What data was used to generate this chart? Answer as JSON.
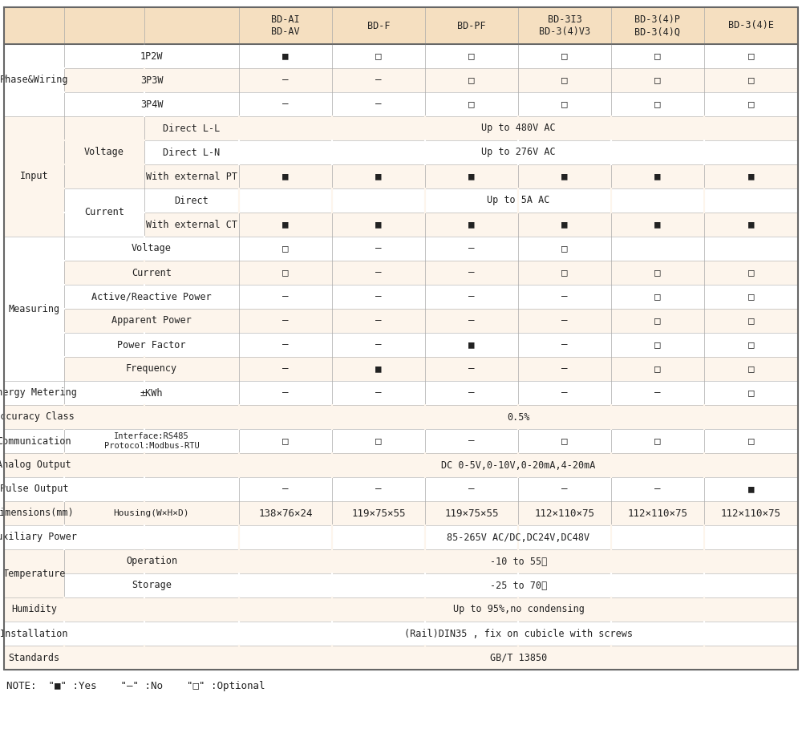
{
  "bg_light": "#fdf5ec",
  "bg_header": "#f5dfc0",
  "bg_white": "#ffffff",
  "border_color": "#aaaaaa",
  "border_dark": "#666666",
  "text_color": "#222222",
  "col_headers": [
    "BD-AI\nBD-AV",
    "BD-F",
    "BD-PF",
    "BD-3I3\nBD-3(4)V3",
    "BD-3(4)P\nBD-3(4)Q",
    "BD-3(4)E"
  ],
  "note": "NOTE:  \"■\" :Yes    \"—\" :No    \"□\" :Optional",
  "rows": [
    {
      "col0": "Phase&Wiring",
      "col0_span": 3,
      "col1": "1P2W",
      "col1_is_label": true,
      "cells": [
        "■",
        "□",
        "□",
        "□",
        "□",
        "□"
      ],
      "bg": "white",
      "row_idx": 0
    },
    {
      "col0": "",
      "col0_span": 0,
      "col1": "3P3W",
      "col1_is_label": true,
      "cells": [
        "—",
        "—",
        "□",
        "□",
        "□",
        "□"
      ],
      "bg": "light",
      "row_idx": 1
    },
    {
      "col0": "",
      "col0_span": 0,
      "col1": "3P4W",
      "col1_is_label": true,
      "cells": [
        "—",
        "—",
        "□",
        "□",
        "□",
        "□"
      ],
      "bg": "white",
      "row_idx": 2
    },
    {
      "col0": "Input",
      "col0_span": 5,
      "col1": "Voltage",
      "col1_span": 3,
      "col2": "Direct L-L",
      "cells_span": "Up to 480V AC",
      "bg": "light",
      "row_idx": 3
    },
    {
      "col0": "",
      "col0_span": 0,
      "col1": "",
      "col1_span": 0,
      "col2": "Direct L-N",
      "cells_span": "Up to 276V AC",
      "bg": "white",
      "row_idx": 4
    },
    {
      "col0": "",
      "col0_span": 0,
      "col1": "",
      "col1_span": 0,
      "col2": "With external PT",
      "cells": [
        "■",
        "■",
        "■",
        "■",
        "■",
        "■"
      ],
      "bg": "light",
      "row_idx": 5
    },
    {
      "col0": "",
      "col0_span": 0,
      "col1": "Current",
      "col1_span": 2,
      "col2": "Direct",
      "cells_span": "Up to 5A AC",
      "bg": "white",
      "row_idx": 6
    },
    {
      "col0": "",
      "col0_span": 0,
      "col1": "",
      "col1_span": 0,
      "col2": "With external CT",
      "cells": [
        "■",
        "■",
        "■",
        "■",
        "■",
        "■"
      ],
      "bg": "light",
      "row_idx": 7
    },
    {
      "col0": "Measuring",
      "col0_span": 6,
      "col1": "Voltage",
      "col1_is_label": true,
      "cells": [
        "□",
        "—",
        "—",
        "□",
        "",
        ""
      ],
      "bg": "white",
      "row_idx": 8
    },
    {
      "col0": "",
      "col0_span": 0,
      "col1": "Current",
      "col1_is_label": true,
      "cells": [
        "□",
        "—",
        "—",
        "□",
        "□",
        "□"
      ],
      "bg": "light",
      "row_idx": 9
    },
    {
      "col0": "",
      "col0_span": 0,
      "col1": "Active/Reactive Power",
      "col1_is_label": true,
      "cells": [
        "—",
        "—",
        "—",
        "—",
        "□",
        "□"
      ],
      "bg": "white",
      "row_idx": 10
    },
    {
      "col0": "",
      "col0_span": 0,
      "col1": "Apparent Power",
      "col1_is_label": true,
      "cells": [
        "—",
        "—",
        "—",
        "—",
        "□",
        "□"
      ],
      "bg": "light",
      "row_idx": 11
    },
    {
      "col0": "",
      "col0_span": 0,
      "col1": "Power Factor",
      "col1_is_label": true,
      "cells": [
        "—",
        "—",
        "■",
        "—",
        "□",
        "□"
      ],
      "bg": "white",
      "row_idx": 12
    },
    {
      "col0": "",
      "col0_span": 0,
      "col1": "Frequency",
      "col1_is_label": true,
      "cells": [
        "—",
        "■",
        "—",
        "—",
        "□",
        "□"
      ],
      "bg": "light",
      "row_idx": 13
    },
    {
      "col0": "Energy Metering",
      "col0_span": 1,
      "col1": "±KWh",
      "col1_is_label": true,
      "cells": [
        "—",
        "—",
        "—",
        "—",
        "—",
        "□"
      ],
      "bg": "white",
      "row_idx": 14
    },
    {
      "col0": "Accuracy Class",
      "col0_span": 1,
      "col0_full": true,
      "cells_span": "0.5%",
      "bg": "light",
      "row_idx": 15
    },
    {
      "col0": "Communication",
      "col0_span": 1,
      "col1": "Interface:RS485\nProtocol:Modbus-RTU",
      "col1_is_label": true,
      "cells": [
        "□",
        "□",
        "—",
        "□",
        "□",
        "□"
      ],
      "bg": "white",
      "row_idx": 16
    },
    {
      "col0": "Analog Output",
      "col0_span": 1,
      "col0_full": true,
      "cells_span": "DC 0-5V,0-10V,0-20mA,4-20mA",
      "bg": "light",
      "row_idx": 17
    },
    {
      "col0": "Pulse Output",
      "col0_span": 1,
      "col0_full": true,
      "cells": [
        "—",
        "—",
        "—",
        "—",
        "—",
        "■"
      ],
      "bg": "white",
      "row_idx": 18
    },
    {
      "col0": "Dimensions(mm)",
      "col0_span": 1,
      "col1": "Housing(W×H×D)",
      "col1_is_label": true,
      "cells": [
        "138×76×24",
        "119×75×55",
        "119×75×55",
        "112×110×75",
        "112×110×75",
        "112×110×75"
      ],
      "bg": "light",
      "row_idx": 19
    },
    {
      "col0": "Auxiliary Power",
      "col0_span": 1,
      "col0_full": true,
      "cells_span": "85-265V AC/DC,DC24V,DC48V",
      "bg": "white",
      "row_idx": 20
    },
    {
      "col0": "Temperature",
      "col0_span": 2,
      "col1": "Operation",
      "col1_is_label": true,
      "cells_span": "-10 to 55℃",
      "bg": "light",
      "row_idx": 21
    },
    {
      "col0": "",
      "col0_span": 0,
      "col1": "Storage",
      "col1_is_label": true,
      "cells_span": "-25 to 70℃",
      "bg": "white",
      "row_idx": 22
    },
    {
      "col0": "Humidity",
      "col0_span": 1,
      "col0_full": true,
      "cells_span": "Up to 95%,no condensing",
      "bg": "light",
      "row_idx": 23
    },
    {
      "col0": "Installation",
      "col0_span": 1,
      "col0_full": true,
      "cells_span": "(Rail)DIN35 , fix on cubicle with screws",
      "bg": "white",
      "row_idx": 24
    },
    {
      "col0": "Standards",
      "col0_span": 1,
      "col0_full": true,
      "cells_span": "GB/T 13850",
      "bg": "light",
      "row_idx": 25
    }
  ]
}
